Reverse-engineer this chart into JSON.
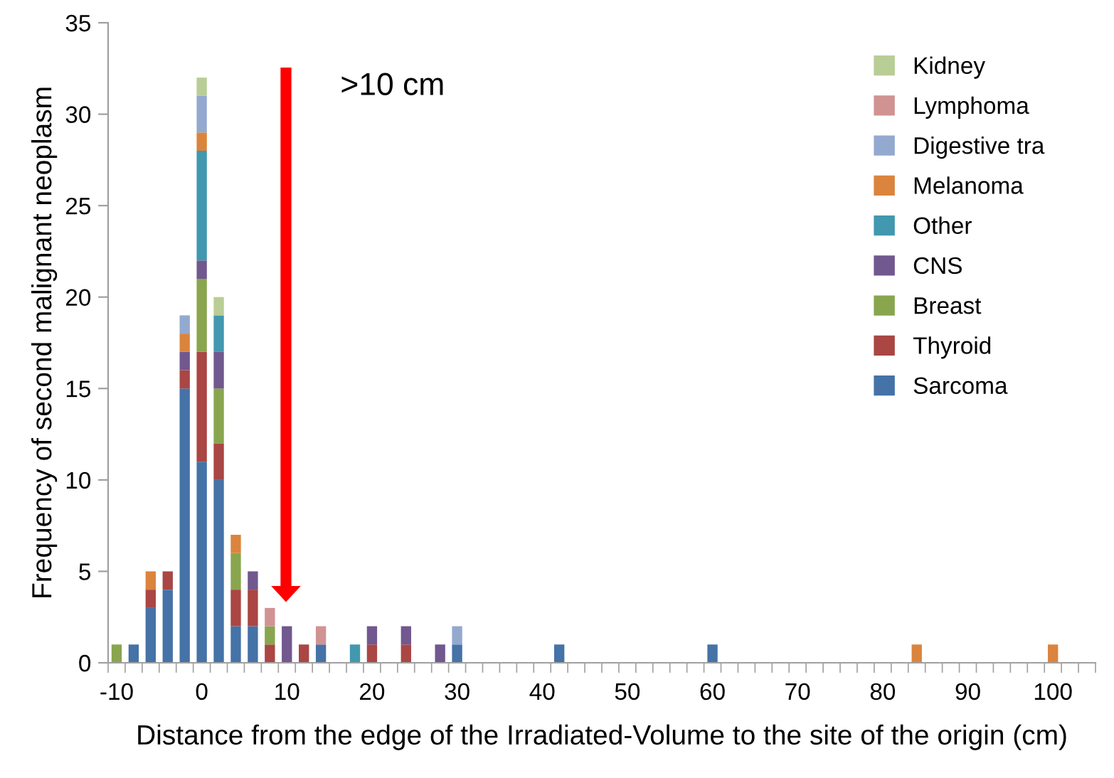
{
  "chart_data": {
    "type": "bar",
    "stacked": true,
    "categories": [
      "-10",
      null,
      null,
      null,
      null,
      "0",
      null,
      null,
      null,
      null,
      "10",
      null,
      null,
      null,
      null,
      "20",
      null,
      null,
      null,
      null,
      "30",
      null,
      null,
      null,
      null,
      "40",
      null,
      null,
      null,
      null,
      "50",
      null,
      null,
      null,
      null,
      "60",
      null,
      null,
      null,
      null,
      "70",
      null,
      null,
      null,
      null,
      "80",
      null,
      null,
      null,
      null,
      "90",
      null,
      null,
      null,
      null,
      "100",
      null,
      null
    ],
    "xlabel": "Distance from the edge of the Irradiated-Volume to the site of the origin (cm)",
    "ylabel": "Frequency of second malignant neoplasm",
    "ylim": [
      0,
      35
    ],
    "yticks": [
      0,
      5,
      10,
      15,
      20,
      25,
      30,
      35
    ],
    "grid": false,
    "legend": "right",
    "annotations": [
      ">10 cm"
    ],
    "series": [
      {
        "name": "Sarcoma",
        "color": "#4572a7",
        "values": [
          null,
          1,
          3,
          4,
          15,
          11,
          10,
          2,
          2,
          null,
          null,
          null,
          1,
          null,
          null,
          null,
          null,
          null,
          null,
          null,
          1,
          null,
          null,
          null,
          null,
          null,
          1,
          null,
          null,
          null,
          null,
          null,
          null,
          null,
          null,
          1,
          null,
          null,
          null,
          null,
          null,
          null,
          null,
          null,
          null,
          null,
          null,
          null,
          null,
          null,
          null,
          null,
          null,
          null,
          null,
          null,
          null,
          null
        ]
      },
      {
        "name": "Thyroid",
        "color": "#aa4643",
        "values": [
          null,
          null,
          1,
          1,
          1,
          6,
          2,
          2,
          2,
          1,
          null,
          1,
          null,
          null,
          null,
          1,
          null,
          1,
          null,
          null,
          null,
          null,
          null,
          null,
          null,
          null,
          null,
          null,
          null,
          null,
          null,
          null,
          null,
          null,
          null,
          null,
          null,
          null,
          null,
          null,
          null,
          null,
          null,
          null,
          null,
          null,
          null,
          null,
          null,
          null,
          null,
          null,
          null,
          null,
          null,
          null,
          null,
          null
        ]
      },
      {
        "name": "Breast",
        "color": "#89a54e",
        "values": [
          1,
          null,
          null,
          null,
          null,
          4,
          3,
          2,
          null,
          1,
          null,
          null,
          null,
          null,
          null,
          null,
          null,
          null,
          null,
          null,
          null,
          null,
          null,
          null,
          null,
          null,
          null,
          null,
          null,
          null,
          null,
          null,
          null,
          null,
          null,
          null,
          null,
          null,
          null,
          null,
          null,
          null,
          null,
          null,
          null,
          null,
          null,
          null,
          null,
          null,
          null,
          null,
          null,
          null,
          null,
          null,
          null,
          null
        ]
      },
      {
        "name": "CNS",
        "color": "#71588f",
        "values": [
          null,
          null,
          null,
          null,
          1,
          1,
          2,
          null,
          1,
          null,
          2,
          null,
          null,
          null,
          null,
          1,
          null,
          1,
          null,
          1,
          null,
          null,
          null,
          null,
          null,
          null,
          null,
          null,
          null,
          null,
          null,
          null,
          null,
          null,
          null,
          null,
          null,
          null,
          null,
          null,
          null,
          null,
          null,
          null,
          null,
          null,
          null,
          null,
          null,
          null,
          null,
          null,
          null,
          null,
          null,
          null,
          null,
          null
        ]
      },
      {
        "name": "Other",
        "color": "#4198af",
        "values": [
          null,
          null,
          null,
          null,
          null,
          6,
          2,
          null,
          null,
          null,
          null,
          null,
          null,
          null,
          1,
          null,
          null,
          null,
          null,
          null,
          null,
          null,
          null,
          null,
          null,
          null,
          null,
          null,
          null,
          null,
          null,
          null,
          null,
          null,
          null,
          null,
          null,
          null,
          null,
          null,
          null,
          null,
          null,
          null,
          null,
          null,
          null,
          null,
          null,
          null,
          null,
          null,
          null,
          null,
          null,
          null,
          null,
          null
        ]
      },
      {
        "name": "Melanoma",
        "color": "#db843d",
        "values": [
          null,
          null,
          1,
          null,
          1,
          1,
          null,
          1,
          null,
          null,
          null,
          null,
          null,
          null,
          null,
          null,
          null,
          null,
          null,
          null,
          null,
          null,
          null,
          null,
          null,
          null,
          null,
          null,
          null,
          null,
          null,
          null,
          null,
          null,
          null,
          null,
          null,
          null,
          null,
          null,
          null,
          null,
          null,
          null,
          null,
          null,
          null,
          1,
          null,
          null,
          null,
          null,
          null,
          null,
          null,
          1,
          null,
          null
        ]
      },
      {
        "name": "Digestive tra",
        "color": "#93a9cf",
        "values": [
          null,
          null,
          null,
          null,
          1,
          2,
          null,
          null,
          null,
          null,
          null,
          null,
          null,
          null,
          null,
          null,
          null,
          null,
          null,
          null,
          1,
          null,
          null,
          null,
          null,
          null,
          null,
          null,
          null,
          null,
          null,
          null,
          null,
          null,
          null,
          null,
          null,
          null,
          null,
          null,
          null,
          null,
          null,
          null,
          null,
          null,
          null,
          null,
          null,
          null,
          null,
          null,
          null,
          null,
          null,
          null,
          null,
          null
        ]
      },
      {
        "name": "Lymphoma",
        "color": "#d19392",
        "values": [
          null,
          null,
          null,
          null,
          null,
          null,
          null,
          null,
          null,
          1,
          null,
          null,
          1,
          null,
          null,
          null,
          null,
          null,
          null,
          null,
          null,
          null,
          null,
          null,
          null,
          null,
          null,
          null,
          null,
          null,
          null,
          null,
          null,
          null,
          null,
          null,
          null,
          null,
          null,
          null,
          null,
          null,
          null,
          null,
          null,
          null,
          null,
          null,
          null,
          null,
          null,
          null,
          null,
          null,
          null,
          null,
          null,
          null
        ]
      },
      {
        "name": "Kidney",
        "color": "#b9cd96",
        "values": [
          null,
          null,
          null,
          null,
          null,
          1,
          1,
          null,
          null,
          null,
          null,
          null,
          null,
          null,
          null,
          null,
          null,
          null,
          null,
          null,
          null,
          null,
          null,
          null,
          null,
          null,
          null,
          null,
          null,
          null,
          null,
          null,
          null,
          null,
          null,
          null,
          null,
          null,
          null,
          null,
          null,
          null,
          null,
          null,
          null,
          null,
          null,
          null,
          null,
          null,
          null,
          null,
          null,
          null,
          null,
          null,
          null,
          null
        ]
      }
    ]
  }
}
